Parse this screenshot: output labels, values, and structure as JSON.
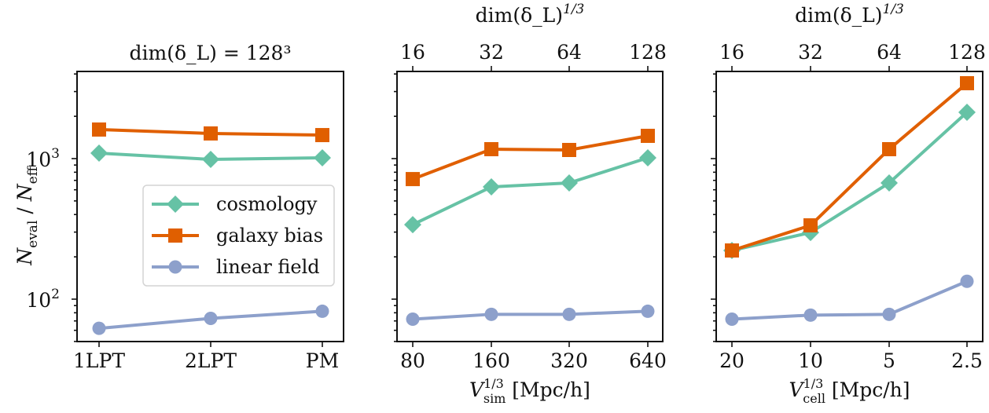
{
  "chart_data": [
    {
      "type": "line",
      "title": "dim(δ_L) = 128³",
      "xlabel": "",
      "ylabel": "N_eval / N_eff",
      "yscale": "log",
      "ylim": [
        50,
        4200
      ],
      "yticks": [
        {
          "value": 1000,
          "label": "10",
          "sup": "3"
        },
        {
          "value": 100,
          "label": "10",
          "sup": "2"
        }
      ],
      "categories": [
        "1LPT",
        "2LPT",
        "PM"
      ],
      "top_axis": null,
      "legend": "center-right",
      "series": [
        {
          "name": "cosmology",
          "marker": "diamond",
          "color": "#66c2a5",
          "values": [
            1094,
            987,
            1013
          ]
        },
        {
          "name": "galaxy bias",
          "marker": "square",
          "color": "#e05f00",
          "values": [
            1610,
            1510,
            1470
          ]
        },
        {
          "name": "linear field",
          "marker": "circle",
          "color": "#8da0cb",
          "values": [
            62,
            73,
            82
          ]
        }
      ]
    },
    {
      "type": "line",
      "title": "",
      "xlabel": "V_sim^{1/3} [Mpc/h]",
      "xlabel_parts": {
        "base": "V",
        "sup": "1/3",
        "sub": "sim",
        "unit": " [Mpc/h]"
      },
      "ylabel": "",
      "yscale": "log",
      "ylim": [
        50,
        4200
      ],
      "categories": [
        "80",
        "160",
        "320",
        "640"
      ],
      "top_axis": {
        "label": "dim(δ_L)",
        "sup": "1/3",
        "ticks": [
          "16",
          "32",
          "64",
          "128"
        ]
      },
      "series": [
        {
          "name": "cosmology",
          "marker": "diamond",
          "color": "#66c2a5",
          "values": [
            339,
            629,
            671,
            1013
          ]
        },
        {
          "name": "galaxy bias",
          "marker": "square",
          "color": "#e05f00",
          "values": [
            715,
            1167,
            1152,
            1452
          ]
        },
        {
          "name": "linear field",
          "marker": "circle",
          "color": "#8da0cb",
          "values": [
            72,
            78,
            78,
            82
          ]
        }
      ]
    },
    {
      "type": "line",
      "title": "",
      "xlabel": "V_cell^{1/3} [Mpc/h]",
      "xlabel_parts": {
        "base": "V",
        "sup": "1/3",
        "sub": "cell",
        "unit": " [Mpc/h]"
      },
      "ylabel": "",
      "yscale": "log",
      "ylim": [
        50,
        4200
      ],
      "categories": [
        "20",
        "10",
        "5",
        "2.5"
      ],
      "top_axis": {
        "label": "dim(δ_L)",
        "sup": "1/3",
        "ticks": [
          "16",
          "32",
          "64",
          "128"
        ]
      },
      "series": [
        {
          "name": "cosmology",
          "marker": "diamond",
          "color": "#66c2a5",
          "values": [
            222,
            298,
            671,
            2136
          ]
        },
        {
          "name": "galaxy bias",
          "marker": "square",
          "color": "#e05f00",
          "values": [
            222,
            335,
            1167,
            3440
          ]
        },
        {
          "name": "linear field",
          "marker": "circle",
          "color": "#8da0cb",
          "values": [
            72,
            77,
            78,
            134
          ]
        }
      ]
    }
  ],
  "legend": {
    "items": [
      "cosmology",
      "galaxy bias",
      "linear field"
    ]
  }
}
